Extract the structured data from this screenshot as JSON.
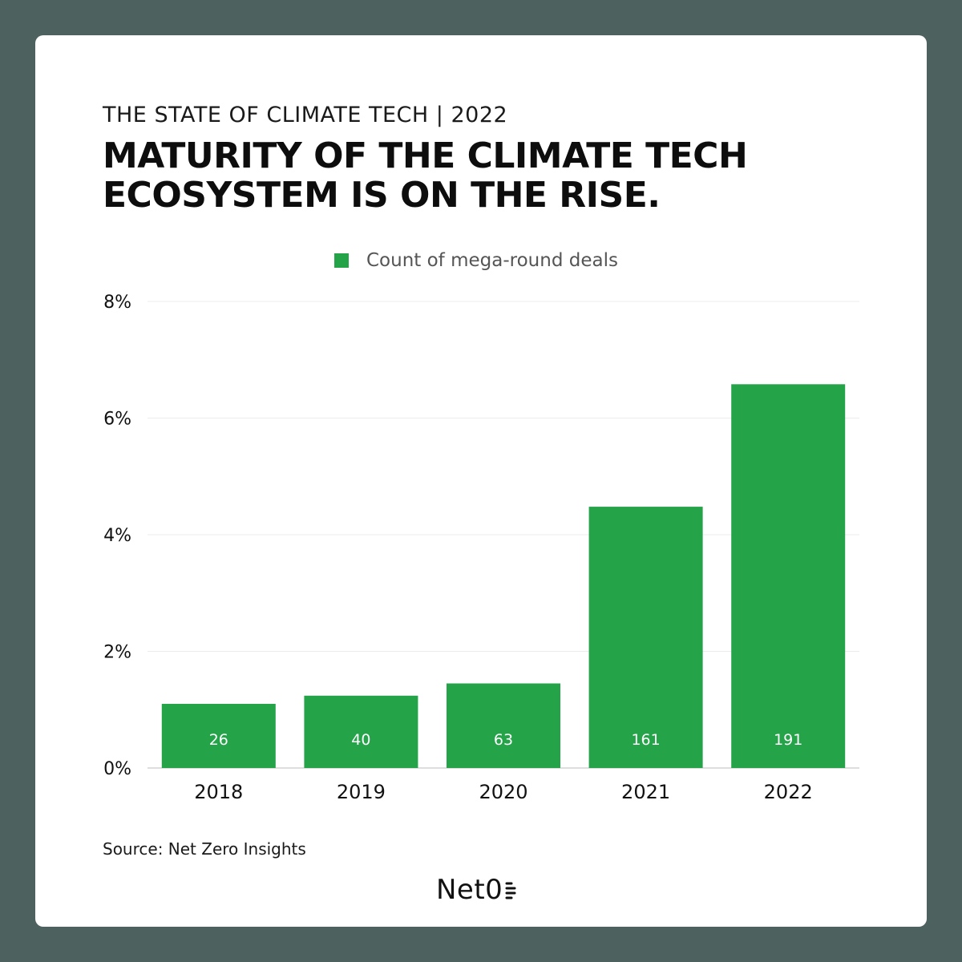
{
  "header": {
    "kicker": "THE STATE OF CLIMATE TECH  | 2022",
    "headline_line1": "MATURITY OF THE CLIMATE TECH",
    "headline_line2": "ECOSYSTEM IS ON THE RISE."
  },
  "chart_data": {
    "type": "bar",
    "categories": [
      "2018",
      "2019",
      "2020",
      "2021",
      "2022"
    ],
    "series": [
      {
        "name": "Count of mega-round deals",
        "values": [
          1.1,
          1.24,
          1.45,
          4.48,
          6.58
        ],
        "data_labels": [
          "26",
          "40",
          "63",
          "161",
          "191"
        ],
        "color": "#25a349"
      }
    ],
    "ylim": [
      0,
      8
    ],
    "yticks": [
      0,
      2,
      4,
      6,
      8
    ],
    "ytick_labels": [
      "0%",
      "2%",
      "4%",
      "6%",
      "8%"
    ],
    "grid": true,
    "legend": "top-center",
    "title": "",
    "xlabel": "",
    "ylabel": ""
  },
  "footer": {
    "source": "Source: Net Zero Insights",
    "brand": "Net0"
  }
}
